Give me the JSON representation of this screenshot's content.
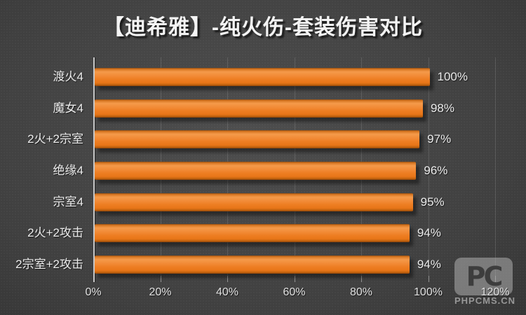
{
  "title": "【迪希雅】-纯火伤-套装伤害对比",
  "chart_data": {
    "type": "bar",
    "orientation": "horizontal",
    "title": "【迪希雅】-纯火伤-套装伤害对比",
    "categories": [
      "渡火4",
      "魔女4",
      "2火+2宗室",
      "绝缘4",
      "宗室4",
      "2火+2攻击",
      "2宗室+2攻击"
    ],
    "values": [
      100,
      98,
      97,
      96,
      95,
      94,
      94
    ],
    "value_labels": [
      "100%",
      "98%",
      "97%",
      "96%",
      "95%",
      "94%",
      "94%"
    ],
    "x_ticks": [
      "0%",
      "20%",
      "40%",
      "60%",
      "80%",
      "100%",
      "120%"
    ],
    "xlim": [
      0,
      120
    ],
    "xlabel": "",
    "ylabel": "",
    "grid": "vertical-on",
    "legend": "none",
    "bar_color": "#ee7e23",
    "background_color": "#3c3c3c",
    "text_color": "#ececec"
  },
  "watermark": {
    "logo_text": "PC",
    "name_text": "PHPCMS.CN"
  }
}
